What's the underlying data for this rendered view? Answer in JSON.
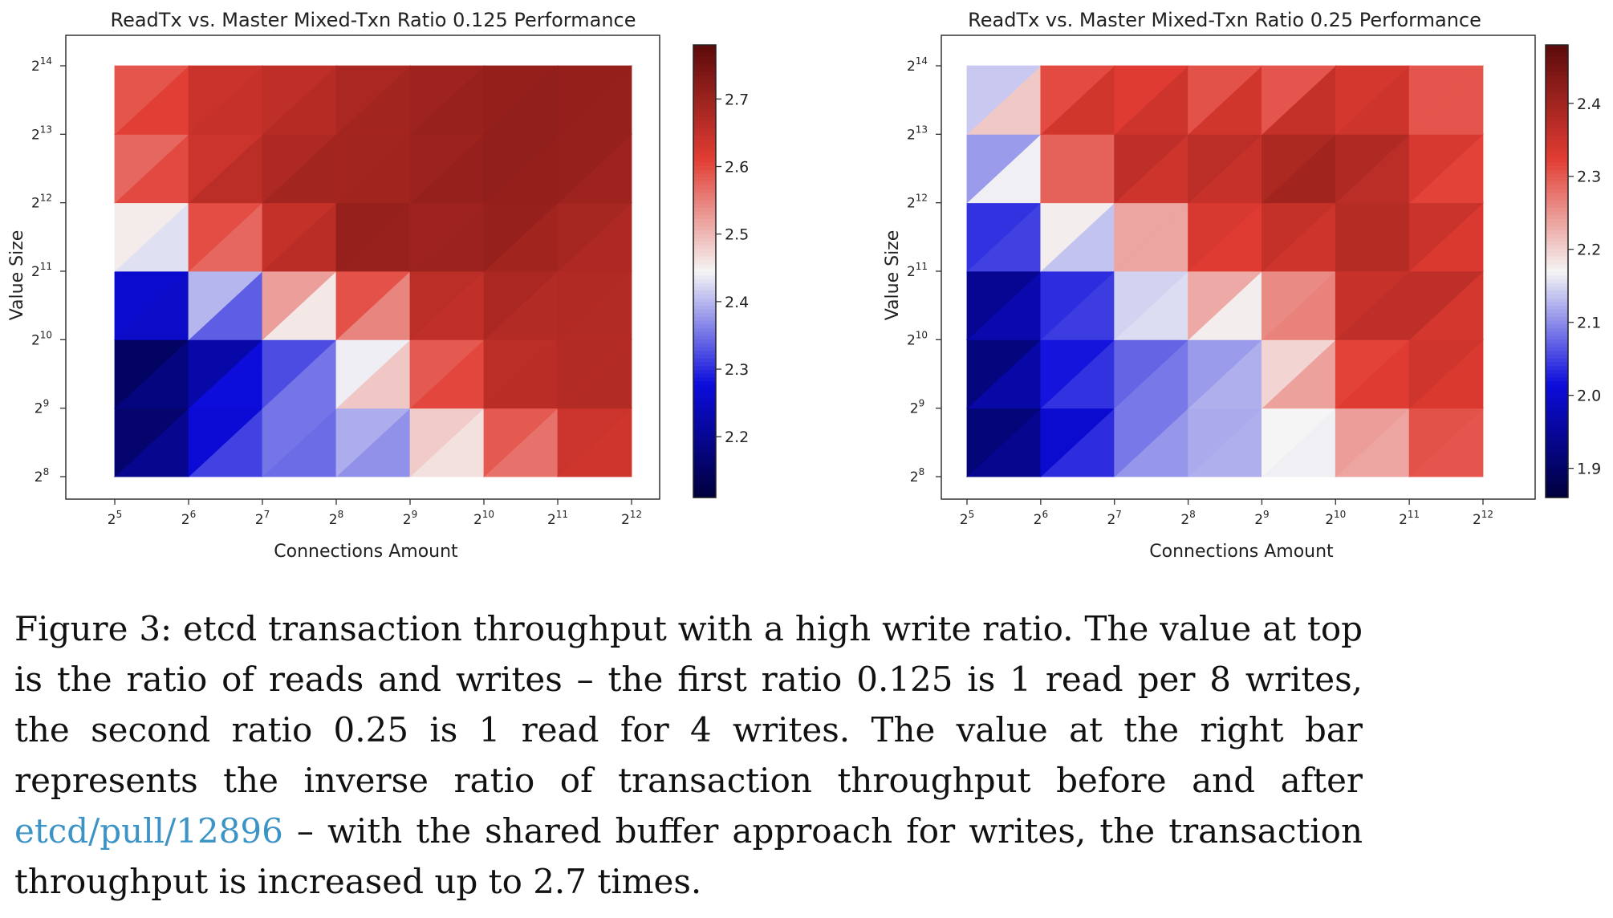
{
  "chart_data": [
    {
      "type": "heatmap",
      "title": "ReadTx vs. Master Mixed-Txn Ratio 0.125 Performance",
      "xlabel": "Connections Amount",
      "ylabel": "Value Size",
      "x_ticks": [
        {
          "b": "2",
          "e": "5"
        },
        {
          "b": "2",
          "e": "6"
        },
        {
          "b": "2",
          "e": "7"
        },
        {
          "b": "2",
          "e": "8"
        },
        {
          "b": "2",
          "e": "9"
        },
        {
          "b": "2",
          "e": "10"
        },
        {
          "b": "2",
          "e": "11"
        },
        {
          "b": "2",
          "e": "12"
        }
      ],
      "y_ticks": [
        {
          "b": "2",
          "e": "8"
        },
        {
          "b": "2",
          "e": "9"
        },
        {
          "b": "2",
          "e": "10"
        },
        {
          "b": "2",
          "e": "11"
        },
        {
          "b": "2",
          "e": "12"
        },
        {
          "b": "2",
          "e": "13"
        },
        {
          "b": "2",
          "e": "14"
        }
      ],
      "x_exponents": [
        5,
        6,
        7,
        8,
        9,
        10,
        11,
        12
      ],
      "y_exponents": [
        8,
        9,
        10,
        11,
        12,
        13,
        14
      ],
      "values": [
        [
          2.12,
          2.25,
          2.36,
          2.32,
          2.3,
          2.44,
          2.58,
          2.66
        ],
        [
          2.14,
          2.22,
          2.34,
          2.36,
          2.5,
          2.65,
          2.67,
          2.67
        ],
        [
          2.13,
          2.18,
          2.27,
          2.36,
          2.6,
          2.66,
          2.67,
          2.67
        ],
        [
          2.2,
          2.46,
          2.56,
          2.74,
          2.68,
          2.7,
          2.68,
          2.67
        ],
        [
          2.53,
          2.63,
          2.7,
          2.69,
          2.69,
          2.72,
          2.7,
          2.68
        ],
        [
          2.55,
          2.64,
          2.65,
          2.68,
          2.7,
          2.71,
          2.71,
          2.71
        ],
        [
          2.58,
          2.64,
          2.65,
          2.67,
          2.69,
          2.7,
          2.72,
          2.7
        ]
      ],
      "colorbar": {
        "min": 2.11,
        "max": 2.78,
        "ticks": [
          "2.2",
          "2.3",
          "2.4",
          "2.5",
          "2.6",
          "2.7"
        ]
      }
    },
    {
      "type": "heatmap",
      "title": "ReadTx vs. Master Mixed-Txn Ratio 0.25 Performance",
      "xlabel": "Connections Amount",
      "ylabel": "Value Size",
      "x_ticks": [
        {
          "b": "2",
          "e": "5"
        },
        {
          "b": "2",
          "e": "6"
        },
        {
          "b": "2",
          "e": "7"
        },
        {
          "b": "2",
          "e": "8"
        },
        {
          "b": "2",
          "e": "9"
        },
        {
          "b": "2",
          "e": "10"
        },
        {
          "b": "2",
          "e": "11"
        },
        {
          "b": "2",
          "e": "12"
        }
      ],
      "y_ticks": [
        {
          "b": "2",
          "e": "8"
        },
        {
          "b": "2",
          "e": "9"
        },
        {
          "b": "2",
          "e": "10"
        },
        {
          "b": "2",
          "e": "11"
        },
        {
          "b": "2",
          "e": "12"
        },
        {
          "b": "2",
          "e": "13"
        },
        {
          "b": "2",
          "e": "14"
        }
      ],
      "x_exponents": [
        5,
        6,
        7,
        8,
        9,
        10,
        11,
        12
      ],
      "y_exponents": [
        8,
        9,
        10,
        11,
        12,
        13,
        14
      ],
      "values": [
        [
          1.87,
          1.95,
          2.1,
          2.12,
          2.11,
          2.13,
          2.24,
          2.33
        ],
        [
          1.89,
          2.0,
          2.06,
          2.1,
          2.14,
          2.26,
          2.34,
          2.34
        ],
        [
          1.88,
          2.0,
          2.06,
          2.1,
          2.13,
          2.32,
          2.38,
          2.32
        ],
        [
          1.92,
          2.03,
          2.08,
          2.3,
          2.3,
          2.35,
          2.4,
          2.32
        ],
        [
          2.0,
          2.2,
          2.3,
          2.33,
          2.38,
          2.4,
          2.38,
          2.28
        ],
        [
          2.03,
          2.3,
          2.38,
          2.42,
          2.36,
          2.42,
          2.33,
          2.3
        ],
        [
          2.1,
          2.29,
          2.35,
          2.25,
          2.25,
          2.3,
          2.3,
          2.28
        ]
      ],
      "colorbar": {
        "min": 1.86,
        "max": 2.48,
        "ticks": [
          "1.9",
          "2.0",
          "2.1",
          "2.2",
          "2.3",
          "2.4"
        ]
      }
    }
  ],
  "caption": {
    "text_before": "Figure 3: etcd transaction throughput with a high write ratio. The value at top is the ratio of reads and writes – the first ratio 0.125 is 1 read per 8 writes, the second ratio 0.25 is 1 read for 4 writes. The value at the right bar represents the inverse ratio of transaction throughput before and after ",
    "link_text": "etcd/pull/12896",
    "text_after": " – with the shared buffer approach for writes, the transaction throughput is increased up to 2.7 times.",
    "link_color": "#3b93c6"
  },
  "colormap": {
    "low": "#00003c",
    "mid": "#f5f5f5",
    "high": "#5c0b0b"
  }
}
